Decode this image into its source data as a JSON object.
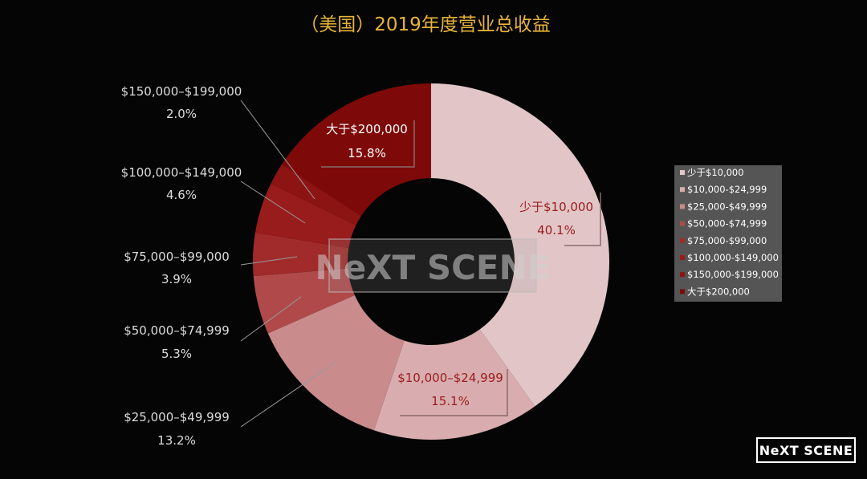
{
  "chart_data": {
    "type": "pie",
    "donut": true,
    "title": "（美国）2019年度营业总收益",
    "categories": [
      "少于$10,000",
      "$10,000-$24,999",
      "$25,000-$49,999",
      "$50,000-$74,999",
      "$75,000-$99,000",
      "$100,000-$149,000",
      "$150,000-$199,000",
      "大于$200,000"
    ],
    "values": [
      40.1,
      15.1,
      13.2,
      5.3,
      3.9,
      4.6,
      2.0,
      15.8
    ],
    "unit": "%",
    "colors": [
      "#e2c6c7",
      "#d9adaf",
      "#c98b8c",
      "#b04a4a",
      "#a02b2a",
      "#981c1b",
      "#8c1413",
      "#7d0a09"
    ],
    "label_colors": [
      "#9b1c1c",
      "#9b1c1c",
      "#dcdcdc",
      "#dcdcdc",
      "#dcdcdc",
      "#dcdcdc",
      "#dcdcdc",
      "#ffffff"
    ],
    "data_labels": [
      {
        "name": "少于$10,000",
        "pct": "40.1%"
      },
      {
        "name": "$10,000–$24,999",
        "pct": "15.1%"
      },
      {
        "name": "$25,000–$49,999",
        "pct": "13.2%"
      },
      {
        "name": "$50,000–$74,999",
        "pct": "5.3%"
      },
      {
        "name": "$75,000–$99,000",
        "pct": "3.9%"
      },
      {
        "name": "$100,000–$149,000",
        "pct": "4.6%"
      },
      {
        "name": "$150,000–$199,000",
        "pct": "2.0%"
      },
      {
        "name": "大于$200,000",
        "pct": "15.8%"
      }
    ],
    "legend": {
      "position": "right",
      "items": [
        "少于$10,000",
        "$10,000-$24,999",
        "$25,000-$49,999",
        "$50,000-$74,999",
        "$75,000-$99,000",
        "$100,000-$149,000",
        "$150,000-$199,000",
        "大于$200,000"
      ]
    },
    "accent": "#e8b43a"
  },
  "watermark": "NeXT SCENE",
  "brand": "NeXT SCENE"
}
